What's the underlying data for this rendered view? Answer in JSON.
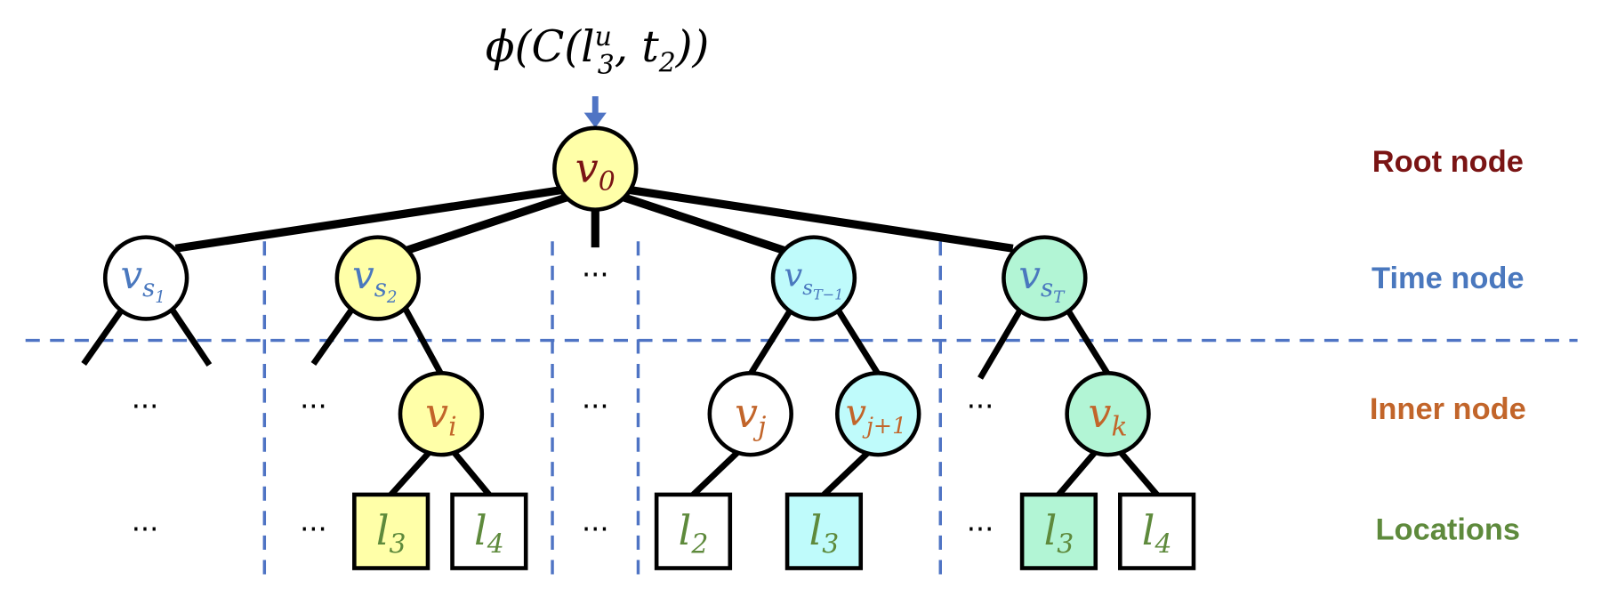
{
  "formula": {
    "phi": "ϕ",
    "open": "(C(",
    "l": "l",
    "sup": "u",
    "sub": "3",
    "mid": ", t",
    "sub2": "2",
    "close": "))"
  },
  "colors": {
    "yellow": "#FFFFA8",
    "cyan": "#BFFBFB",
    "green": "#B2F5D5",
    "white": "#FFFFFF",
    "arrow": "#4F74C4",
    "divider": "#4F74C4"
  },
  "levels": {
    "root": {
      "label": "Root node",
      "color": "#7A1414"
    },
    "time": {
      "label": "Time node",
      "color": "#4A78BE"
    },
    "inner": {
      "label": "Inner node",
      "color": "#C2652A"
    },
    "locations": {
      "label": "Locations",
      "color": "#5E8A3C"
    }
  },
  "ellipsis": "···",
  "root": {
    "base": "v",
    "sub": "0",
    "fill": "yellow"
  },
  "time_nodes": [
    {
      "base": "v",
      "sub": "s",
      "subsub": "1",
      "fill": "white"
    },
    {
      "base": "v",
      "sub": "s",
      "subsub": "2",
      "fill": "yellow"
    },
    {
      "base": "v",
      "sub": "s",
      "subsub": "T−1",
      "fill": "cyan"
    },
    {
      "base": "v",
      "sub": "s",
      "subsub": "T",
      "fill": "green"
    }
  ],
  "inner_nodes": [
    {
      "base": "v",
      "sub": "i",
      "fill": "yellow"
    },
    {
      "base": "v",
      "sub": "j",
      "fill": "white"
    },
    {
      "base": "v",
      "sub": "j+1",
      "fill": "cyan"
    },
    {
      "base": "v",
      "sub": "k",
      "fill": "green"
    }
  ],
  "locations": [
    {
      "base": "l",
      "sub": "3",
      "fill": "yellow"
    },
    {
      "base": "l",
      "sub": "4",
      "fill": "white"
    },
    {
      "base": "l",
      "sub": "2",
      "fill": "white"
    },
    {
      "base": "l",
      "sub": "3",
      "fill": "cyan"
    },
    {
      "base": "l",
      "sub": "3",
      "fill": "green"
    },
    {
      "base": "l",
      "sub": "4",
      "fill": "white"
    }
  ]
}
